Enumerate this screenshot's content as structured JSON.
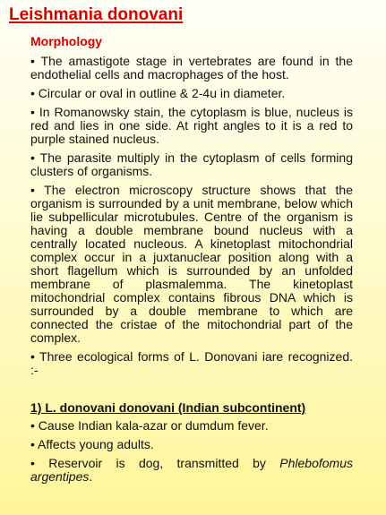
{
  "title": "Leishmania donovani",
  "morphology": {
    "heading": "Morphology",
    "items": [
      "• The amastigote stage in vertebrates are found in the endothelial cells and macrophages of the host.",
      "• Circular or oval in outline & 2-4u in diameter.",
      "• In Romanowsky stain, the cytoplasm is blue, nucleus is red and lies in one side. At right angles to it is a red to purple stained nucleus.",
      "• The parasite multiply in the cytoplasm of cells forming clusters of organisms.",
      "• The electron microscopy structure shows that the organism is surrounded by a unit membrane, below which lie subpellicular microtubules. Centre of the organism is having a double membrane bound nucleus with a centrally located nucleous. A kinetoplast mitochondrial complex occur in a juxtanuclear position along with a short flagellum which is surrounded by an unfolded membrane of plasmalemma. The kinetoplast mitochondrial complex contains fibrous DNA which is surrounded by a double membrane to which are connected the cristae of the mitochondrial part of the complex.",
      "• Three ecological forms of L. Donovani iare recognized. :-"
    ]
  },
  "section1": {
    "heading": "1) L. donovani donovani (Indian subcontinent)",
    "items": [
      "• Cause Indian kala-azar or dumdum fever.",
      "• Affects young adults."
    ],
    "reservoir_prefix": "• Reservoir is dog, transmitted by ",
    "reservoir_vector": "Phlebofomus argentipes",
    "reservoir_suffix": "."
  }
}
